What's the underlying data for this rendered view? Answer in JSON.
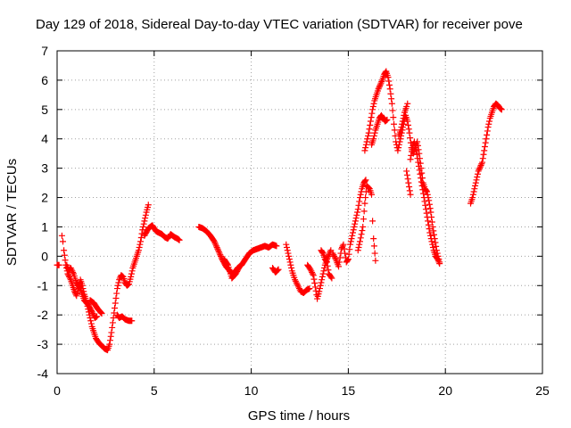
{
  "chart_data": {
    "type": "scatter",
    "title": "Day 129 of 2018, Sidereal Day-to-day VTEC variation (SDTVAR) for receiver pove",
    "xlabel": "GPS time / hours",
    "ylabel": "SDTVAR / TECUs",
    "xlim": [
      0,
      25
    ],
    "ylim": [
      -4,
      7
    ],
    "x_ticks": [
      "0",
      "5",
      "10",
      "15",
      "20",
      "25"
    ],
    "y_ticks": [
      "-4",
      "-3",
      "-2",
      "-1",
      "0",
      "1",
      "2",
      "3",
      "4",
      "5",
      "6",
      "7"
    ],
    "grid": true,
    "marker": "plus",
    "color": "#ff0000",
    "segments": [
      [
        [
          0.0,
          -0.3
        ],
        [
          0.1,
          -0.3
        ]
      ],
      [
        [
          0.25,
          0.7
        ],
        [
          0.3,
          0.5
        ],
        [
          0.35,
          0.2
        ],
        [
          0.45,
          -0.3
        ],
        [
          0.55,
          -0.6
        ],
        [
          0.7,
          -0.8
        ],
        [
          0.8,
          -1.0
        ],
        [
          0.9,
          -1.2
        ],
        [
          1.0,
          -1.35
        ],
        [
          1.1,
          -1.1
        ],
        [
          1.2,
          -0.8
        ],
        [
          1.3,
          -1.0
        ],
        [
          1.4,
          -1.3
        ],
        [
          1.5,
          -1.5
        ],
        [
          1.6,
          -1.8
        ],
        [
          1.7,
          -2.1
        ],
        [
          1.8,
          -2.4
        ],
        [
          1.9,
          -2.6
        ],
        [
          2.0,
          -2.8
        ],
        [
          2.15,
          -2.95
        ],
        [
          2.3,
          -3.05
        ],
        [
          2.45,
          -3.15
        ],
        [
          2.6,
          -3.2
        ],
        [
          2.7,
          -3.0
        ],
        [
          2.8,
          -2.6
        ],
        [
          2.9,
          -2.1
        ],
        [
          3.0,
          -1.6
        ],
        [
          3.1,
          -1.1
        ],
        [
          3.2,
          -0.8
        ],
        [
          3.3,
          -0.65
        ],
        [
          3.4,
          -0.7
        ],
        [
          3.5,
          -0.9
        ],
        [
          3.6,
          -1.0
        ],
        [
          3.7,
          -0.95
        ],
        [
          3.8,
          -0.7
        ],
        [
          3.9,
          -0.4
        ],
        [
          4.0,
          -0.2
        ],
        [
          4.1,
          0.0
        ],
        [
          4.2,
          0.2
        ],
        [
          4.3,
          0.5
        ],
        [
          4.4,
          0.9
        ],
        [
          4.5,
          1.2
        ],
        [
          4.6,
          1.5
        ],
        [
          4.7,
          1.75
        ]
      ],
      [
        [
          0.5,
          -0.3
        ],
        [
          0.6,
          -0.5
        ],
        [
          0.7,
          -0.4
        ],
        [
          0.85,
          -0.6
        ],
        [
          1.0,
          -0.9
        ],
        [
          1.2,
          -1.1
        ],
        [
          1.4,
          -1.5
        ],
        [
          1.6,
          -1.65
        ],
        [
          1.8,
          -1.9
        ],
        [
          1.95,
          -2.1
        ],
        [
          2.05,
          -2.05
        ]
      ],
      [
        [
          1.7,
          -1.5
        ],
        [
          1.9,
          -1.6
        ],
        [
          2.1,
          -1.8
        ],
        [
          2.3,
          -1.95
        ]
      ],
      [
        [
          3.1,
          -2.0
        ],
        [
          3.2,
          -2.1
        ],
        [
          3.35,
          -2.05
        ],
        [
          3.5,
          -2.15
        ],
        [
          3.7,
          -2.2
        ],
        [
          3.85,
          -2.2
        ]
      ],
      [
        [
          4.5,
          0.7
        ],
        [
          4.7,
          0.95
        ],
        [
          4.9,
          1.05
        ],
        [
          5.0,
          0.95
        ],
        [
          5.1,
          0.85
        ],
        [
          5.25,
          0.8
        ],
        [
          5.4,
          0.75
        ],
        [
          5.55,
          0.65
        ],
        [
          5.7,
          0.6
        ],
        [
          5.85,
          0.75
        ],
        [
          5.95,
          0.7
        ],
        [
          6.05,
          0.65
        ],
        [
          6.2,
          0.6
        ],
        [
          6.3,
          0.55
        ]
      ],
      [
        [
          7.3,
          1.0
        ],
        [
          7.5,
          0.95
        ],
        [
          7.7,
          0.85
        ],
        [
          7.9,
          0.7
        ],
        [
          8.1,
          0.5
        ],
        [
          8.3,
          0.2
        ],
        [
          8.5,
          -0.1
        ],
        [
          8.7,
          -0.35
        ],
        [
          8.9,
          -0.5
        ],
        [
          9.0,
          -0.6
        ],
        [
          9.15,
          -0.55
        ],
        [
          9.3,
          -0.4
        ],
        [
          9.5,
          -0.3
        ],
        [
          9.7,
          -0.1
        ],
        [
          9.9,
          0.1
        ],
        [
          10.1,
          0.2
        ],
        [
          10.3,
          0.25
        ],
        [
          10.5,
          0.3
        ],
        [
          10.7,
          0.35
        ],
        [
          10.9,
          0.3
        ],
        [
          11.1,
          0.4
        ],
        [
          11.3,
          0.35
        ]
      ],
      [
        [
          8.6,
          -0.1
        ],
        [
          8.8,
          -0.3
        ],
        [
          9.0,
          -0.75
        ],
        [
          9.2,
          -0.6
        ],
        [
          9.4,
          -0.35
        ]
      ],
      [
        [
          11.1,
          -0.4
        ],
        [
          11.25,
          -0.55
        ],
        [
          11.4,
          -0.45
        ]
      ],
      [
        [
          11.8,
          0.4
        ],
        [
          11.9,
          0.1
        ],
        [
          12.0,
          -0.2
        ],
        [
          12.1,
          -0.5
        ],
        [
          12.25,
          -0.8
        ],
        [
          12.4,
          -1.0
        ],
        [
          12.55,
          -1.2
        ],
        [
          12.7,
          -1.25
        ],
        [
          12.85,
          -1.15
        ],
        [
          13.0,
          -1.1
        ]
      ],
      [
        [
          12.9,
          -0.3
        ],
        [
          13.05,
          -0.45
        ],
        [
          13.2,
          -0.65
        ],
        [
          13.3,
          -1.05
        ],
        [
          13.4,
          -1.45
        ],
        [
          13.5,
          -1.2
        ],
        [
          13.6,
          -0.9
        ],
        [
          13.7,
          -0.6
        ],
        [
          13.8,
          -0.3
        ],
        [
          13.9,
          -0.1
        ],
        [
          14.0,
          0.05
        ],
        [
          14.1,
          0.2
        ]
      ],
      [
        [
          13.6,
          0.2
        ],
        [
          13.7,
          0.1
        ],
        [
          13.8,
          -0.1
        ],
        [
          13.9,
          -0.2
        ],
        [
          14.0,
          -0.6
        ],
        [
          14.15,
          -0.75
        ]
      ],
      [
        [
          14.2,
          0.1
        ],
        [
          14.35,
          -0.1
        ],
        [
          14.5,
          -0.35
        ],
        [
          14.65,
          0.25
        ],
        [
          14.75,
          0.4
        ],
        [
          14.9,
          -0.2
        ],
        [
          15.0,
          -0.1
        ],
        [
          15.1,
          0.4
        ],
        [
          15.2,
          0.7
        ],
        [
          15.3,
          1.0
        ],
        [
          15.4,
          1.3
        ],
        [
          15.5,
          1.6
        ],
        [
          15.6,
          2.0
        ],
        [
          15.7,
          2.3
        ],
        [
          15.8,
          2.5
        ],
        [
          15.9,
          2.6
        ]
      ],
      [
        [
          15.5,
          0.2
        ],
        [
          15.6,
          0.5
        ],
        [
          15.75,
          1.0
        ],
        [
          15.85,
          1.8
        ],
        [
          15.95,
          2.4
        ],
        [
          16.1,
          2.3
        ],
        [
          16.2,
          2.1
        ],
        [
          16.25,
          1.2
        ],
        [
          16.3,
          0.6
        ],
        [
          16.4,
          -0.15
        ]
      ],
      [
        [
          15.85,
          3.6
        ],
        [
          15.95,
          3.9
        ],
        [
          16.05,
          4.2
        ],
        [
          16.15,
          4.6
        ],
        [
          16.25,
          5.0
        ],
        [
          16.35,
          5.3
        ],
        [
          16.45,
          5.5
        ],
        [
          16.55,
          5.7
        ],
        [
          16.65,
          5.85
        ],
        [
          16.75,
          6.0
        ],
        [
          16.85,
          6.2
        ],
        [
          16.95,
          6.3
        ],
        [
          17.05,
          6.1
        ],
        [
          17.15,
          5.7
        ],
        [
          17.25,
          5.2
        ],
        [
          17.35,
          4.5
        ],
        [
          17.45,
          3.9
        ],
        [
          17.55,
          3.6
        ],
        [
          17.65,
          3.9
        ],
        [
          17.75,
          4.2
        ],
        [
          17.85,
          4.5
        ],
        [
          17.95,
          4.8
        ],
        [
          18.05,
          4.6
        ],
        [
          18.15,
          4.2
        ],
        [
          18.25,
          3.7
        ],
        [
          18.35,
          3.5
        ],
        [
          18.45,
          3.7
        ],
        [
          18.55,
          3.9
        ],
        [
          18.65,
          3.5
        ],
        [
          18.75,
          3.0
        ],
        [
          18.85,
          2.5
        ],
        [
          18.95,
          2.3
        ],
        [
          19.05,
          2.2
        ],
        [
          19.15,
          1.9
        ],
        [
          19.25,
          1.5
        ],
        [
          19.35,
          1.0
        ],
        [
          19.45,
          0.6
        ],
        [
          19.55,
          0.2
        ],
        [
          19.7,
          -0.2
        ]
      ],
      [
        [
          16.2,
          3.8
        ],
        [
          16.3,
          4.0
        ],
        [
          16.4,
          4.3
        ],
        [
          16.5,
          4.5
        ],
        [
          16.6,
          4.7
        ],
        [
          16.7,
          4.8
        ],
        [
          16.8,
          4.7
        ],
        [
          16.9,
          4.6
        ],
        [
          17.0,
          4.65
        ]
      ],
      [
        [
          17.6,
          4.1
        ],
        [
          17.7,
          4.3
        ],
        [
          17.8,
          4.6
        ],
        [
          17.9,
          4.9
        ],
        [
          18.0,
          5.1
        ],
        [
          18.05,
          5.2
        ]
      ],
      [
        [
          18.2,
          3.3
        ],
        [
          18.3,
          3.7
        ],
        [
          18.4,
          3.9
        ],
        [
          18.5,
          3.6
        ],
        [
          18.6,
          3.2
        ],
        [
          18.7,
          2.8
        ],
        [
          18.8,
          2.4
        ],
        [
          18.9,
          2.0
        ],
        [
          19.0,
          1.6
        ],
        [
          19.1,
          1.2
        ],
        [
          19.2,
          0.8
        ],
        [
          19.3,
          0.5
        ],
        [
          19.4,
          0.2
        ],
        [
          19.5,
          0.0
        ],
        [
          19.6,
          -0.1
        ],
        [
          19.7,
          -0.25
        ]
      ],
      [
        [
          18.0,
          2.9
        ],
        [
          18.1,
          2.5
        ],
        [
          18.2,
          2.1
        ]
      ],
      [
        [
          21.3,
          1.8
        ],
        [
          21.4,
          2.0
        ],
        [
          21.5,
          2.3
        ],
        [
          21.6,
          2.6
        ],
        [
          21.7,
          2.9
        ],
        [
          21.8,
          3.05
        ],
        [
          21.9,
          3.2
        ],
        [
          22.0,
          3.6
        ],
        [
          22.1,
          4.0
        ],
        [
          22.2,
          4.4
        ],
        [
          22.3,
          4.7
        ],
        [
          22.4,
          4.9
        ],
        [
          22.5,
          5.1
        ],
        [
          22.6,
          5.2
        ],
        [
          22.7,
          5.15
        ],
        [
          22.8,
          5.05
        ],
        [
          22.9,
          5.0
        ]
      ]
    ]
  }
}
